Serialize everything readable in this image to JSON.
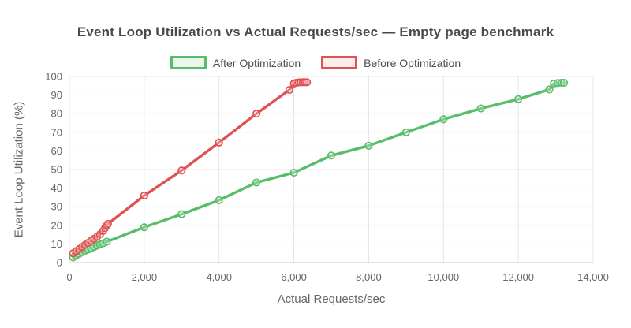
{
  "styles": {
    "background": "#ffffff",
    "title_color": "#4a4a4a",
    "tick_label_color": "#666666",
    "axis_title_color": "#666666",
    "grid_color": "#e4e4e4",
    "axis_line_color": "#c9c9c9",
    "after_color": "#58bd68",
    "after_fill": "#eaf7ec",
    "before_color": "#df5252",
    "before_fill": "#fdecec"
  },
  "chart_data": {
    "type": "line",
    "title": "Event Loop Utilization vs Actual Requests/sec — Empty page benchmark",
    "xlabel": "Actual Requests/sec",
    "ylabel": "Event Loop Utilization (%)",
    "xlim": [
      0,
      14000
    ],
    "ylim": [
      0,
      100
    ],
    "grid": true,
    "legend_position": "top-center",
    "marker": "open-circle",
    "x_ticks": [
      {
        "value": 0,
        "label": "0"
      },
      {
        "value": 2000,
        "label": "2,000"
      },
      {
        "value": 4000,
        "label": "4,000"
      },
      {
        "value": 6000,
        "label": "6,000"
      },
      {
        "value": 8000,
        "label": "8,000"
      },
      {
        "value": 10000,
        "label": "10,000"
      },
      {
        "value": 12000,
        "label": "12,000"
      },
      {
        "value": 14000,
        "label": "14,000"
      }
    ],
    "y_ticks": [
      0,
      10,
      20,
      30,
      40,
      50,
      60,
      70,
      80,
      90,
      100
    ],
    "series": [
      {
        "name": "After Optimization",
        "color": "#58bd68",
        "fill": "#eaf7ec",
        "points": [
          [
            100,
            2.8
          ],
          [
            180,
            3.8
          ],
          [
            260,
            4.7
          ],
          [
            340,
            5.5
          ],
          [
            420,
            6.3
          ],
          [
            500,
            7.0
          ],
          [
            580,
            7.7
          ],
          [
            660,
            8.4
          ],
          [
            740,
            9.1
          ],
          [
            820,
            9.8
          ],
          [
            900,
            10.4
          ],
          [
            1000,
            11.2
          ],
          [
            2000,
            19
          ],
          [
            3000,
            26
          ],
          [
            4000,
            33.5
          ],
          [
            5000,
            43
          ],
          [
            6000,
            48.3
          ],
          [
            7000,
            57.5
          ],
          [
            8000,
            62.8
          ],
          [
            9000,
            70
          ],
          [
            10000,
            77
          ],
          [
            11000,
            82.8
          ],
          [
            12000,
            87.8
          ],
          [
            12830,
            93
          ],
          [
            12950,
            96.2
          ],
          [
            13050,
            96.5
          ],
          [
            13150,
            96.6
          ],
          [
            13220,
            96.6
          ]
        ]
      },
      {
        "name": "Before Optimization",
        "color": "#df5252",
        "fill": "#fdecec",
        "points": [
          [
            100,
            5
          ],
          [
            180,
            6.2
          ],
          [
            260,
            7.3
          ],
          [
            340,
            8.4
          ],
          [
            420,
            9.5
          ],
          [
            500,
            10.6
          ],
          [
            580,
            11.7
          ],
          [
            660,
            12.8
          ],
          [
            740,
            13.9
          ],
          [
            820,
            15.2
          ],
          [
            900,
            17
          ],
          [
            950,
            18.5
          ],
          [
            1000,
            20
          ],
          [
            1030,
            20.8
          ],
          [
            2000,
            36
          ],
          [
            3000,
            49.5
          ],
          [
            4000,
            64.5
          ],
          [
            5000,
            80
          ],
          [
            5880,
            92.8
          ],
          [
            6000,
            96.2
          ],
          [
            6060,
            96.6
          ],
          [
            6120,
            96.8
          ],
          [
            6180,
            96.9
          ],
          [
            6240,
            96.9
          ],
          [
            6300,
            96.9
          ],
          [
            6350,
            96.9
          ]
        ]
      }
    ]
  }
}
